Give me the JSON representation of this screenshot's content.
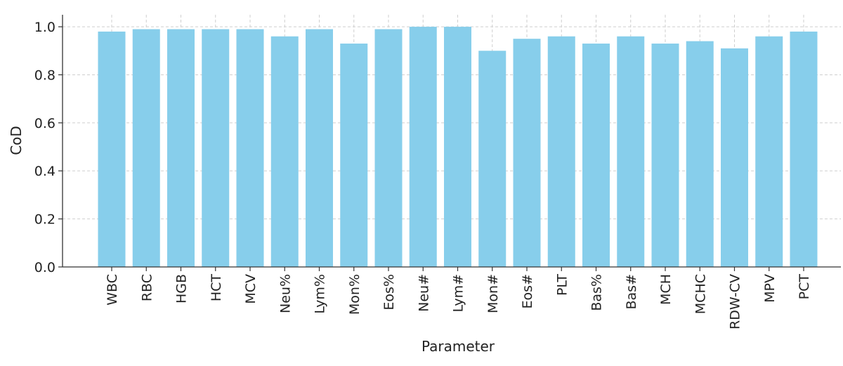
{
  "chart_data": {
    "type": "bar",
    "x_label": "Parameter",
    "y_label": "CoD",
    "categories": [
      "WBC",
      "RBC",
      "HGB",
      "HCT",
      "MCV",
      "Neu%",
      "Lym%",
      "Mon%",
      "Eos%",
      "Neu#",
      "Lym#",
      "Mon#",
      "Eos#",
      "PLT",
      "Bas%",
      "Bas#",
      "MCH",
      "MCHC",
      "RDW-CV",
      "MPV",
      "PCT"
    ],
    "values": [
      0.98,
      0.99,
      0.99,
      0.99,
      0.99,
      0.96,
      0.99,
      0.93,
      0.99,
      1.0,
      1.0,
      0.9,
      0.95,
      0.96,
      0.93,
      0.96,
      0.93,
      0.94,
      0.91,
      0.96,
      0.98
    ],
    "color": "#87ceeb",
    "ylim": [
      0,
      1.05
    ],
    "yticks": [
      {
        "value": 0,
        "label": "0.0"
      },
      {
        "value": 0.2,
        "label": "0.2"
      },
      {
        "value": 0.4,
        "label": "0.4"
      },
      {
        "value": 0.6,
        "label": "0.6"
      },
      {
        "value": 0.8,
        "label": "0.8"
      },
      {
        "value": 1,
        "label": "1.0"
      }
    ],
    "grid": true
  }
}
